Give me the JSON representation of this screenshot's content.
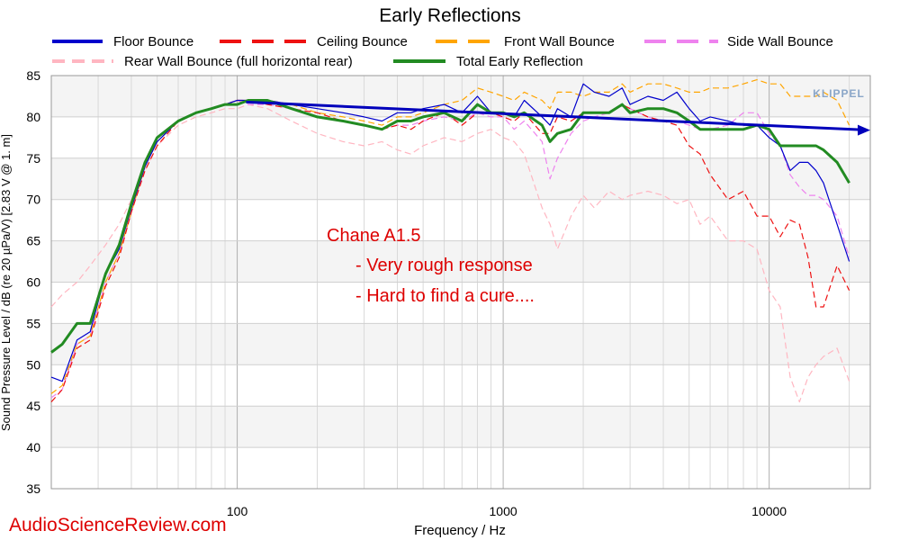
{
  "chart_data": {
    "type": "line",
    "title": "Early Reflections",
    "xlabel": "Frequency / Hz",
    "ylabel": "Sound Pressure Level / dB (re 20 µPa/V)  [2.83  V @ 1. m]",
    "x_scale": "log",
    "xlim": [
      20,
      24000
    ],
    "ylim": [
      35,
      85
    ],
    "x_ticks": [
      {
        "value": 100,
        "label": "100"
      },
      {
        "value": 1000,
        "label": "1000"
      },
      {
        "value": 10000,
        "label": "10000"
      }
    ],
    "y_ticks": [
      35,
      40,
      45,
      50,
      55,
      60,
      65,
      70,
      75,
      80,
      85
    ],
    "grid": true,
    "legend_placement": "top",
    "series": [
      {
        "name": "Floor Bounce",
        "color": "#0000cc",
        "dash": "none",
        "x": [
          20,
          22,
          25,
          28,
          32,
          36,
          40,
          45,
          50,
          60,
          70,
          80,
          90,
          100,
          110,
          130,
          160,
          200,
          250,
          300,
          350,
          400,
          450,
          500,
          600,
          700,
          800,
          900,
          1000,
          1100,
          1200,
          1400,
          1500,
          1600,
          1800,
          2000,
          2200,
          2500,
          2800,
          3000,
          3500,
          4000,
          4500,
          5000,
          5500,
          6000,
          7000,
          8000,
          9000,
          10000,
          11000,
          12000,
          13000,
          14000,
          15000,
          16000,
          18000,
          20000
        ],
        "y": [
          48.5,
          48,
          53,
          54,
          61,
          64,
          69,
          74,
          77,
          79.5,
          80.5,
          81,
          81.5,
          82,
          82,
          82,
          81.5,
          81,
          80.5,
          80,
          79.5,
          80.5,
          80.5,
          81,
          81.5,
          80.5,
          82.5,
          80.5,
          80.5,
          80,
          82,
          80,
          79,
          81,
          80,
          84,
          83,
          82.5,
          83.5,
          81.5,
          82.5,
          82,
          83,
          81,
          79.5,
          80,
          79.5,
          79,
          79,
          77.5,
          76.5,
          73.5,
          74.5,
          74.5,
          73.5,
          72,
          67,
          62.5
        ]
      },
      {
        "name": "Ceiling Bounce",
        "color": "#ee1111",
        "dash": "7 4",
        "x": [
          20,
          22,
          25,
          28,
          32,
          36,
          40,
          45,
          50,
          60,
          70,
          80,
          90,
          100,
          110,
          130,
          160,
          200,
          250,
          300,
          350,
          400,
          450,
          500,
          600,
          700,
          800,
          900,
          1000,
          1100,
          1200,
          1400,
          1500,
          1600,
          1800,
          2000,
          2200,
          2500,
          2800,
          3000,
          3500,
          4000,
          4500,
          5000,
          5500,
          6000,
          7000,
          8000,
          9000,
          10000,
          11000,
          12000,
          13000,
          14000,
          15000,
          16000,
          18000,
          20000
        ],
        "y": [
          45.5,
          47,
          52,
          53,
          59.5,
          63,
          68.5,
          73.5,
          76.5,
          79.5,
          80.5,
          81,
          81.5,
          82,
          82,
          81.5,
          81,
          80.5,
          79.5,
          79,
          78.5,
          79,
          78.5,
          79.5,
          80.5,
          79,
          80.5,
          80.5,
          80,
          79.5,
          80.5,
          78,
          78,
          80,
          79.5,
          80.5,
          80.5,
          80.5,
          81.5,
          81,
          80,
          79.5,
          79,
          76.5,
          75.5,
          73,
          70,
          71,
          68,
          68,
          65.5,
          67.5,
          67,
          63,
          57,
          57,
          62,
          59
        ]
      },
      {
        "name": "Front Wall Bounce",
        "color": "#ffa500",
        "dash": "7 4",
        "x": [
          20,
          22,
          25,
          28,
          32,
          36,
          40,
          45,
          50,
          60,
          70,
          80,
          90,
          100,
          110,
          130,
          160,
          200,
          250,
          300,
          350,
          400,
          450,
          500,
          600,
          700,
          800,
          900,
          1000,
          1100,
          1200,
          1400,
          1500,
          1600,
          1800,
          2000,
          2200,
          2500,
          2800,
          3000,
          3500,
          4000,
          4500,
          5000,
          5500,
          6000,
          7000,
          8000,
          9000,
          10000,
          11000,
          12000,
          13000,
          14000,
          15000,
          16000,
          18000,
          20000
        ],
        "y": [
          46.5,
          47.5,
          52.5,
          53.5,
          60,
          63.5,
          68.5,
          74,
          77,
          79.5,
          80.5,
          81,
          81.5,
          82,
          82,
          82,
          81.5,
          80.5,
          80,
          79.5,
          79,
          80,
          80,
          80.5,
          81.5,
          82,
          83.5,
          83,
          82.5,
          82,
          83,
          82,
          81,
          83,
          83,
          82.5,
          83,
          83,
          84,
          83,
          84,
          84,
          83.5,
          83,
          83,
          83.5,
          83.5,
          84,
          84.5,
          84,
          84,
          82.5,
          82.5,
          82.5,
          82.5,
          83,
          82,
          79
        ]
      },
      {
        "name": "Side Wall Bounce",
        "color": "#ee82ee",
        "dash": "7 4",
        "x": [
          20,
          22,
          25,
          28,
          32,
          36,
          40,
          45,
          50,
          60,
          70,
          80,
          90,
          100,
          110,
          130,
          160,
          200,
          250,
          300,
          350,
          400,
          450,
          500,
          600,
          700,
          800,
          900,
          1000,
          1100,
          1200,
          1400,
          1500,
          1600,
          1800,
          2000,
          2200,
          2500,
          2800,
          3000,
          3500,
          4000,
          4500,
          5000,
          5500,
          6000,
          7000,
          8000,
          9000,
          10000,
          11000,
          12000,
          13000,
          14000,
          15000,
          16000,
          18000,
          20000
        ],
        "y": [
          46,
          47,
          52.5,
          53.5,
          60,
          63.5,
          68.5,
          74,
          77,
          79.5,
          80.5,
          81,
          81.5,
          82,
          81.5,
          81.5,
          81,
          80,
          79.5,
          79,
          78.5,
          79,
          79,
          79.5,
          80,
          79.5,
          80.5,
          80,
          80,
          78.5,
          79.5,
          77,
          72.5,
          75,
          78,
          79.5,
          80,
          80.5,
          81.5,
          81,
          80,
          79.5,
          79.5,
          79,
          78.5,
          78.5,
          79,
          80.5,
          80.5,
          78,
          76.5,
          73,
          71.5,
          70.5,
          70.5,
          70,
          68,
          63
        ]
      },
      {
        "name": "Rear Wall Bounce (full horizontal rear)",
        "color": "#ffb6c1",
        "dash": "7 4",
        "x": [
          20,
          22,
          25,
          28,
          32,
          36,
          40,
          45,
          50,
          60,
          70,
          80,
          90,
          100,
          110,
          130,
          160,
          200,
          250,
          300,
          350,
          400,
          450,
          500,
          600,
          700,
          800,
          900,
          1000,
          1100,
          1200,
          1400,
          1500,
          1600,
          1800,
          2000,
          2200,
          2500,
          2800,
          3000,
          3500,
          4000,
          4500,
          5000,
          5500,
          6000,
          7000,
          8000,
          9000,
          10000,
          11000,
          12000,
          13000,
          14000,
          15000,
          16000,
          18000,
          20000
        ],
        "y": [
          57,
          58.5,
          60,
          62,
          64.5,
          67,
          70,
          73.5,
          76.5,
          79,
          80,
          80.5,
          81,
          81,
          81.5,
          81,
          79.5,
          78,
          77,
          76.5,
          77,
          76,
          75.5,
          76.5,
          77.5,
          77,
          78,
          78.5,
          77.5,
          77,
          75.5,
          69,
          67,
          64,
          68,
          70.5,
          69,
          71,
          70,
          70.5,
          71,
          70.5,
          69.5,
          70,
          67,
          68,
          65,
          65,
          64,
          59,
          57,
          48.5,
          45.5,
          48.5,
          50,
          51,
          52,
          48
        ]
      },
      {
        "name": "Total Early Reflection",
        "color": "#228b22",
        "dash": "none",
        "width": 3,
        "x": [
          20,
          22,
          25,
          28,
          32,
          36,
          40,
          45,
          50,
          60,
          70,
          80,
          90,
          100,
          110,
          130,
          160,
          200,
          250,
          300,
          350,
          400,
          450,
          500,
          600,
          700,
          800,
          900,
          1000,
          1100,
          1200,
          1400,
          1500,
          1600,
          1800,
          2000,
          2200,
          2500,
          2800,
          3000,
          3500,
          4000,
          4500,
          5000,
          5500,
          6000,
          7000,
          8000,
          9000,
          10000,
          11000,
          12000,
          13000,
          14000,
          15000,
          16000,
          18000,
          20000
        ],
        "y": [
          51.5,
          52.5,
          55,
          55,
          61,
          64.5,
          69.5,
          74.5,
          77.5,
          79.5,
          80.5,
          81,
          81.5,
          81.5,
          82,
          82,
          81,
          80,
          79.5,
          79,
          78.5,
          79.5,
          79.5,
          80,
          80.5,
          79.5,
          81.5,
          80.5,
          80.5,
          80,
          80.5,
          79,
          77,
          78,
          78.5,
          80.5,
          80.5,
          80.5,
          81.5,
          80.5,
          81,
          81,
          80.5,
          79.5,
          78.5,
          78.5,
          78.5,
          78.5,
          79,
          78.5,
          76.5,
          76.5,
          76.5,
          76.5,
          76.5,
          76,
          74.5,
          72
        ]
      }
    ],
    "trend_line": {
      "color": "#0000bb",
      "from": {
        "x": 108,
        "y": 81.8
      },
      "to": {
        "x": 24000,
        "y": 78.4
      }
    },
    "annotations": [
      "Chane A1.5",
      "- Very rough response",
      "- Hard to find a cure...."
    ],
    "watermark": "AudioScienceReview.com",
    "logo_text": "KLIPPEL"
  }
}
